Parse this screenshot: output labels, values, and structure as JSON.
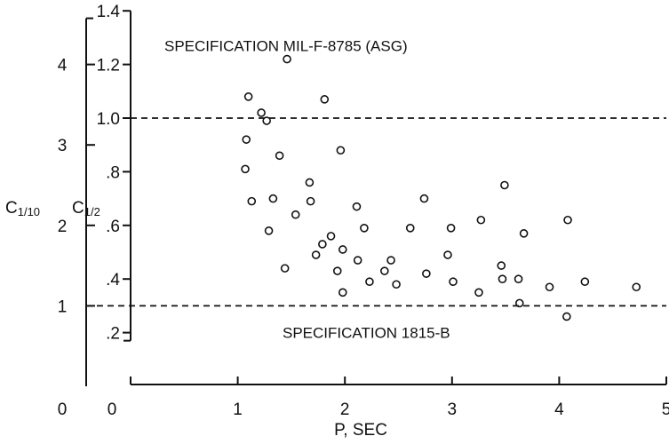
{
  "chart_data": {
    "type": "scatter",
    "title": "",
    "xlabel": "P, SEC",
    "ylabel_left": "C1/10",
    "ylabel_right": "C1/2",
    "xlim": [
      0,
      5
    ],
    "xticks": [
      "0",
      "1",
      "2",
      "3",
      "4",
      "5"
    ],
    "c12_lim": [
      0,
      1.4
    ],
    "c12_ticks": [
      ".2",
      ".4",
      ".6",
      ".8",
      "1.0",
      "1.2",
      "1.4"
    ],
    "c12_tick_values": [
      0.2,
      0.4,
      0.6,
      0.8,
      1.0,
      1.2,
      1.4
    ],
    "c12_origin_label": "0",
    "c110_ticks": [
      "0",
      "1",
      "2",
      "3",
      "4"
    ],
    "c110_tick_values": [
      0,
      1,
      2,
      3,
      4
    ],
    "c110_at_c12": [
      0.0,
      0.3,
      0.6,
      0.9,
      1.2
    ],
    "grid": false,
    "reference_lines": [
      {
        "c12": 1.0,
        "label": "SPECIFICATION  MIL-F-8785 (ASG)"
      },
      {
        "c12": 0.3,
        "label": "SPECIFICATION  1815-B"
      }
    ],
    "points": [
      [
        1.1,
        1.08
      ],
      [
        1.08,
        0.92
      ],
      [
        1.07,
        0.81
      ],
      [
        1.13,
        0.69
      ],
      [
        1.22,
        1.02
      ],
      [
        1.27,
        0.99
      ],
      [
        1.29,
        0.58
      ],
      [
        1.33,
        0.7
      ],
      [
        1.39,
        0.86
      ],
      [
        1.44,
        0.44
      ],
      [
        1.46,
        1.22
      ],
      [
        1.54,
        0.64
      ],
      [
        1.67,
        0.76
      ],
      [
        1.68,
        0.69
      ],
      [
        1.73,
        0.49
      ],
      [
        1.79,
        0.53
      ],
      [
        1.81,
        1.07
      ],
      [
        1.87,
        0.56
      ],
      [
        1.93,
        0.43
      ],
      [
        1.96,
        0.88
      ],
      [
        1.98,
        0.51
      ],
      [
        1.98,
        0.35
      ],
      [
        2.11,
        0.67
      ],
      [
        2.12,
        0.47
      ],
      [
        2.18,
        0.59
      ],
      [
        2.23,
        0.39
      ],
      [
        2.37,
        0.43
      ],
      [
        2.43,
        0.47
      ],
      [
        2.48,
        0.38
      ],
      [
        2.61,
        0.59
      ],
      [
        2.74,
        0.7
      ],
      [
        2.76,
        0.42
      ],
      [
        2.96,
        0.49
      ],
      [
        2.99,
        0.59
      ],
      [
        3.01,
        0.39
      ],
      [
        3.25,
        0.35
      ],
      [
        3.27,
        0.62
      ],
      [
        3.46,
        0.45
      ],
      [
        3.47,
        0.4
      ],
      [
        3.49,
        0.75
      ],
      [
        3.62,
        0.4
      ],
      [
        3.63,
        0.31
      ],
      [
        3.67,
        0.57
      ],
      [
        3.91,
        0.37
      ],
      [
        4.07,
        0.26
      ],
      [
        4.08,
        0.62
      ],
      [
        4.24,
        0.39
      ],
      [
        4.72,
        0.37
      ]
    ]
  }
}
